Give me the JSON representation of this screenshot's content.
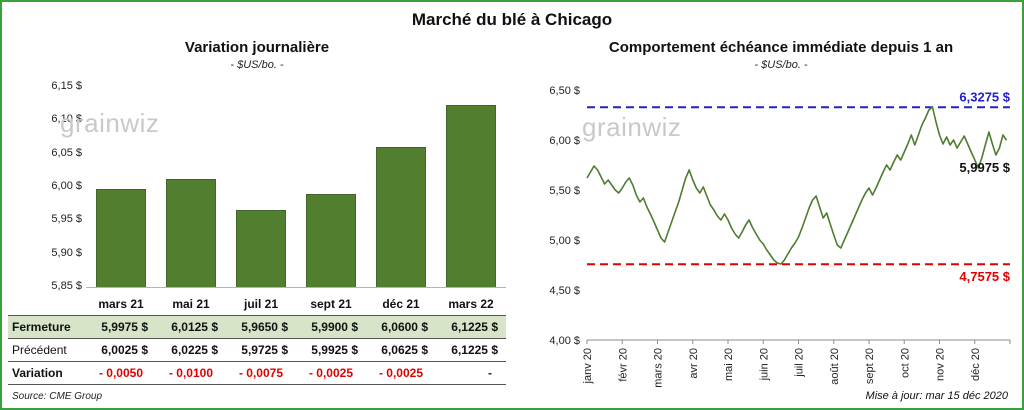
{
  "page": {
    "title": "Marché du blé à Chicago",
    "source": "Source: CME Group",
    "updated": "Mise à jour: mar 15 déc 2020",
    "watermark": "grainwiz"
  },
  "colors": {
    "accent_green": "#527f2f",
    "table_row_green": "#d7e4c7",
    "negative_red": "#e00000",
    "high_blue": "#2222cc",
    "frame_green": "#3aa13a"
  },
  "table": {
    "rows": [
      {
        "label": "Fermeture",
        "style": "fermeture",
        "values": [
          "5,9975 $",
          "6,0125 $",
          "5,9650 $",
          "5,9900 $",
          "6,0600 $",
          "6,1225 $"
        ]
      },
      {
        "label": "Précédent",
        "style": "precedent",
        "values": [
          "6,0025 $",
          "6,0225 $",
          "5,9725 $",
          "5,9925 $",
          "6,0625 $",
          "6,1225 $"
        ]
      },
      {
        "label": "Variation",
        "style": "variation",
        "values": [
          "- 0,0050",
          "- 0,0100",
          "- 0,0075",
          "- 0,0025",
          "- 0,0025",
          "-"
        ]
      }
    ]
  },
  "chart_data": [
    {
      "type": "bar",
      "title": "Variation journalière",
      "subtitle": "- $US/bo. -",
      "categories": [
        "mars 21",
        "mai 21",
        "juil 21",
        "sept 21",
        "déc 21",
        "mars 22"
      ],
      "values": [
        5.9975,
        6.0125,
        5.965,
        5.99,
        6.06,
        6.1225
      ],
      "ylim": [
        5.85,
        6.15
      ],
      "ytick_labels": [
        "6,15 $",
        "6,10 $",
        "6,05 $",
        "6,00 $",
        "5,95 $",
        "5,90 $",
        "5,85 $"
      ],
      "bar_color": "#527f2f",
      "legend": "none",
      "grid": "off"
    },
    {
      "type": "line",
      "title": "Comportement échéance immédiate depuis 1 an",
      "subtitle": "- $US/bo. -",
      "x_labels": [
        "janv 20",
        "févr 20",
        "mars 20",
        "avr 20",
        "mai 20",
        "juin 20",
        "juil 20",
        "août 20",
        "sept 20",
        "oct 20",
        "nov 20",
        "déc 20"
      ],
      "ylim": [
        4.0,
        6.5
      ],
      "ytick_labels": [
        "6,50 $",
        "6,00 $",
        "5,50 $",
        "5,00 $",
        "4,50 $",
        "4,00 $"
      ],
      "line_color": "#4e7d30",
      "grid": "off",
      "legend": "none",
      "ref_lines": [
        {
          "value": 6.3275,
          "label": "6,3275 $",
          "color": "#2222cc",
          "style": "dashed"
        },
        {
          "value": 4.7575,
          "label": "4,7575 $",
          "color": "#e00000",
          "style": "dashed"
        }
      ],
      "last_value": 5.9975,
      "last_value_label": "5,9975 $",
      "points": [
        [
          0.0,
          5.62
        ],
        [
          0.1,
          5.68
        ],
        [
          0.2,
          5.74
        ],
        [
          0.3,
          5.7
        ],
        [
          0.4,
          5.63
        ],
        [
          0.5,
          5.56
        ],
        [
          0.6,
          5.6
        ],
        [
          0.7,
          5.55
        ],
        [
          0.8,
          5.5
        ],
        [
          0.9,
          5.47
        ],
        [
          1.0,
          5.52
        ],
        [
          1.1,
          5.58
        ],
        [
          1.2,
          5.62
        ],
        [
          1.3,
          5.55
        ],
        [
          1.4,
          5.45
        ],
        [
          1.5,
          5.38
        ],
        [
          1.6,
          5.42
        ],
        [
          1.7,
          5.33
        ],
        [
          1.8,
          5.26
        ],
        [
          1.9,
          5.18
        ],
        [
          2.0,
          5.1
        ],
        [
          2.1,
          5.02
        ],
        [
          2.2,
          4.98
        ],
        [
          2.3,
          5.08
        ],
        [
          2.4,
          5.18
        ],
        [
          2.5,
          5.28
        ],
        [
          2.6,
          5.38
        ],
        [
          2.7,
          5.5
        ],
        [
          2.8,
          5.62
        ],
        [
          2.9,
          5.7
        ],
        [
          3.0,
          5.6
        ],
        [
          3.1,
          5.52
        ],
        [
          3.2,
          5.47
        ],
        [
          3.3,
          5.53
        ],
        [
          3.4,
          5.44
        ],
        [
          3.5,
          5.35
        ],
        [
          3.6,
          5.3
        ],
        [
          3.7,
          5.24
        ],
        [
          3.8,
          5.2
        ],
        [
          3.9,
          5.26
        ],
        [
          4.0,
          5.2
        ],
        [
          4.1,
          5.12
        ],
        [
          4.2,
          5.06
        ],
        [
          4.3,
          5.02
        ],
        [
          4.4,
          5.08
        ],
        [
          4.5,
          5.15
        ],
        [
          4.6,
          5.2
        ],
        [
          4.7,
          5.12
        ],
        [
          4.8,
          5.06
        ],
        [
          4.9,
          5.0
        ],
        [
          5.0,
          4.96
        ],
        [
          5.1,
          4.9
        ],
        [
          5.2,
          4.85
        ],
        [
          5.3,
          4.8
        ],
        [
          5.4,
          4.77
        ],
        [
          5.5,
          4.76
        ],
        [
          5.6,
          4.8
        ],
        [
          5.7,
          4.86
        ],
        [
          5.8,
          4.92
        ],
        [
          5.9,
          4.97
        ],
        [
          6.0,
          5.03
        ],
        [
          6.1,
          5.12
        ],
        [
          6.2,
          5.22
        ],
        [
          6.3,
          5.32
        ],
        [
          6.4,
          5.4
        ],
        [
          6.5,
          5.44
        ],
        [
          6.6,
          5.33
        ],
        [
          6.7,
          5.22
        ],
        [
          6.8,
          5.27
        ],
        [
          6.9,
          5.16
        ],
        [
          7.0,
          5.05
        ],
        [
          7.1,
          4.95
        ],
        [
          7.2,
          4.92
        ],
        [
          7.3,
          5.0
        ],
        [
          7.4,
          5.08
        ],
        [
          7.5,
          5.16
        ],
        [
          7.6,
          5.24
        ],
        [
          7.7,
          5.32
        ],
        [
          7.8,
          5.4
        ],
        [
          7.9,
          5.47
        ],
        [
          8.0,
          5.52
        ],
        [
          8.1,
          5.45
        ],
        [
          8.2,
          5.52
        ],
        [
          8.3,
          5.6
        ],
        [
          8.4,
          5.68
        ],
        [
          8.5,
          5.75
        ],
        [
          8.6,
          5.7
        ],
        [
          8.7,
          5.78
        ],
        [
          8.8,
          5.85
        ],
        [
          8.9,
          5.8
        ],
        [
          9.0,
          5.88
        ],
        [
          9.1,
          5.96
        ],
        [
          9.2,
          6.05
        ],
        [
          9.3,
          5.95
        ],
        [
          9.4,
          6.05
        ],
        [
          9.5,
          6.15
        ],
        [
          9.6,
          6.22
        ],
        [
          9.7,
          6.3
        ],
        [
          9.8,
          6.33
        ],
        [
          9.9,
          6.18
        ],
        [
          10.0,
          6.05
        ],
        [
          10.1,
          5.96
        ],
        [
          10.2,
          6.03
        ],
        [
          10.3,
          5.95
        ],
        [
          10.4,
          6.0
        ],
        [
          10.5,
          5.92
        ],
        [
          10.6,
          5.98
        ],
        [
          10.7,
          6.04
        ],
        [
          10.8,
          5.96
        ],
        [
          10.9,
          5.88
        ],
        [
          11.0,
          5.8
        ],
        [
          11.1,
          5.72
        ],
        [
          11.2,
          5.82
        ],
        [
          11.3,
          5.95
        ],
        [
          11.4,
          6.08
        ],
        [
          11.5,
          5.96
        ],
        [
          11.6,
          5.85
        ],
        [
          11.7,
          5.92
        ],
        [
          11.8,
          6.05
        ],
        [
          11.9,
          5.9975
        ]
      ]
    }
  ]
}
